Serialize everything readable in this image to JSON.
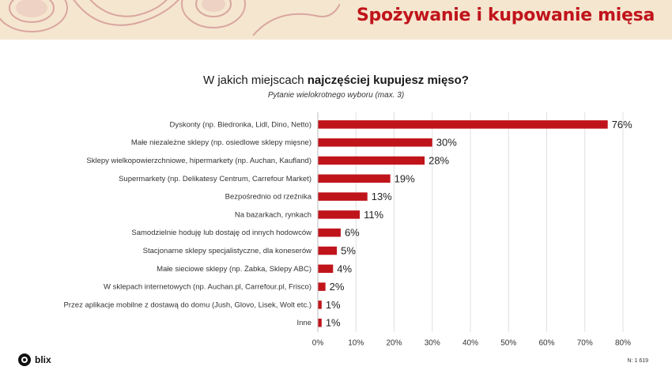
{
  "banner": {
    "title": "Spożywanie i kupowanie mięsa",
    "accent": "#c0141b",
    "background": "#f5e6cf"
  },
  "question": {
    "prefix": "W jakich miejscach ",
    "emphasis": "najczęściej kupujesz mięso?",
    "subtitle": "Pytanie wielokrotnego wyboru (max. 3)"
  },
  "chart_data": {
    "type": "bar",
    "orientation": "horizontal",
    "categories": [
      "Dyskonty (np. Biedronka, Lidl, Dino, Netto)",
      "Małe niezależne sklepy (np. osiedlowe sklepy mięsne)",
      "Sklepy wielkopowierzchniowe, hipermarkety (np. Auchan, Kaufland)",
      "Supermarkety (np. Delikatesy Centrum, Carrefour Market)",
      "Bezpośrednio od rzeźnika",
      "Na bazarkach, rynkach",
      "Samodzielnie hoduję lub dostaję od innych hodowców",
      "Stacjonarne sklepy specjalistyczne, dla koneserów",
      "Małe sieciowe sklepy (np. Żabka, Sklepy ABC)",
      "W sklepach internetowych (np. Auchan.pl, Carrefour.pl, Frisco)",
      "Przez aplikacje mobilne z dostawą do domu (Jush, Glovo, Lisek, Wolt etc.)",
      "Inne"
    ],
    "values": [
      76,
      30,
      28,
      19,
      13,
      11,
      6,
      5,
      4,
      2,
      1,
      1
    ],
    "value_labels": [
      "76%",
      "30%",
      "28%",
      "19%",
      "13%",
      "11%",
      "6%",
      "5%",
      "4%",
      "2%",
      "1%",
      "1%"
    ],
    "xlim": [
      0,
      80
    ],
    "xticks": [
      0,
      10,
      20,
      30,
      40,
      50,
      60,
      70,
      80
    ],
    "xtick_labels": [
      "0%",
      "10%",
      "20%",
      "30%",
      "40%",
      "50%",
      "60%",
      "70%",
      "80%"
    ],
    "grid": true,
    "bar_color": "#c0141b"
  },
  "footer": {
    "brand": "blix",
    "sample": "N: 1 619"
  }
}
